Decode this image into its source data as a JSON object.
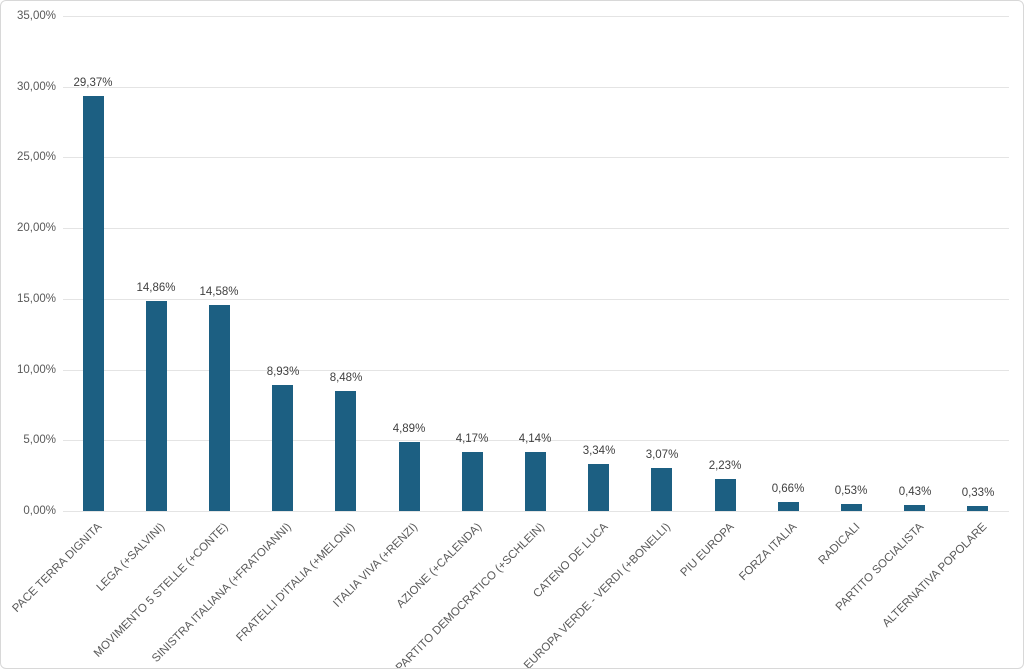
{
  "chart": {
    "background": "#ffffff",
    "frame_border_color": "#d8d8d8"
  },
  "chart_data": {
    "type": "bar",
    "title": "",
    "xlabel": "",
    "ylabel": "",
    "categories": [
      "PACE TERRA DIGNITA",
      "LEGA (+SALVINI)",
      "MOVIMENTO 5 STELLE (+CONTE)",
      "SINISTRA ITALIANA (+FRATOIANNI)",
      "FRATELLI D'ITALIA (+MELONI)",
      "ITALIA VIVA (+RENZI)",
      "AZIONE (+CALENDA)",
      "PARTITO DEMOCRATICO (+SCHLEIN)",
      "CATENO DE LUCA",
      "EUROPA VERDE - VERDI (+BONELLI)",
      "PIU EUROPA",
      "FORZA ITALIA",
      "RADICALI",
      "PARTITO SOCIALISTA",
      "ALTERNATIVA POPOLARE"
    ],
    "values": [
      29.37,
      14.86,
      14.58,
      8.93,
      8.48,
      4.89,
      4.17,
      4.14,
      3.34,
      3.07,
      2.23,
      0.66,
      0.53,
      0.43,
      0.33
    ],
    "value_labels": [
      "29,37%",
      "14,86%",
      "14,58%",
      "8,93%",
      "8,48%",
      "4,89%",
      "4,17%",
      "4,14%",
      "3,34%",
      "3,07%",
      "2,23%",
      "0,66%",
      "0,53%",
      "0,43%",
      "0,33%"
    ],
    "ylim": [
      0,
      35
    ],
    "y_ticks": {
      "values": [
        0,
        5,
        10,
        15,
        20,
        25,
        30,
        35
      ],
      "labels": [
        "0,00%",
        "5,00%",
        "10,00%",
        "15,00%",
        "20,00%",
        "25,00%",
        "30,00%",
        "35,00%"
      ]
    },
    "grid": "horizontal",
    "legend": "none",
    "bar_color": "#1c5f82",
    "gridline_color": "#e4e4e4",
    "tick_label_color": "#595959",
    "data_label_color": "#404040"
  }
}
